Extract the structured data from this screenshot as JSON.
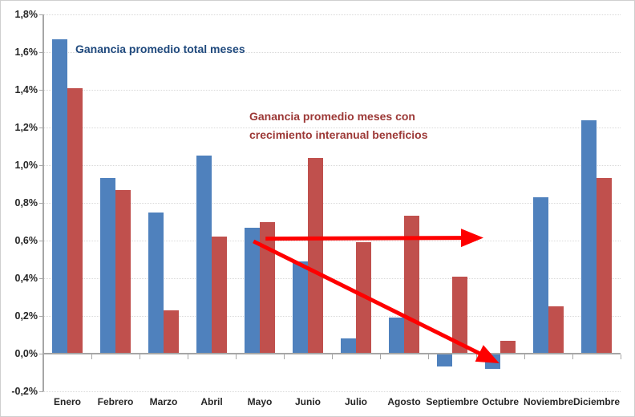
{
  "page": {
    "background": "#FFFFFF",
    "border_color": "#CFCFCF"
  },
  "chart_data": {
    "type": "bar",
    "title": "",
    "xlabel": "",
    "ylabel": "",
    "categories": [
      "Enero",
      "Febrero",
      "Marzo",
      "Abril",
      "Mayo",
      "Junio",
      "Julio",
      "Agosto",
      "Septiembre",
      "Octubre",
      "Noviembre",
      "Diciembre"
    ],
    "series": [
      {
        "name": "Ganancia promedio total meses",
        "color": "#4F81BD",
        "values": [
          1.67,
          0.93,
          0.75,
          1.05,
          0.67,
          0.49,
          0.08,
          0.19,
          -0.07,
          -0.08,
          0.83,
          1.24
        ]
      },
      {
        "name": "Ganancia promedio meses con crecimiento interanual beneficios",
        "color": "#C0504D",
        "values": [
          1.41,
          0.87,
          0.23,
          0.62,
          0.7,
          1.04,
          0.59,
          0.73,
          0.41,
          0.07,
          0.25,
          0.93
        ]
      }
    ],
    "ylim": [
      -0.2,
      1.8
    ],
    "ytick_values": [
      1.8,
      1.6,
      1.4,
      1.2,
      1.0,
      0.8,
      0.6,
      0.4,
      0.2,
      0.0,
      -0.2
    ],
    "ytick_labels": [
      "1,8%",
      "1,6%",
      "1,4%",
      "1,2%",
      "1,0%",
      "0,8%",
      "0,6%",
      "0,4%",
      "0,2%",
      "0,0%",
      "-0,2%"
    ],
    "grid": {
      "horizontal": true,
      "style": "dotted",
      "color": "#D9D9D9"
    },
    "axis_color": "#A6A6A6",
    "tick_label_color": "#262626",
    "legend_position": "none"
  },
  "annotations": {
    "blue_label": {
      "text": "Ganancia promedio total meses",
      "color": "#1F497D"
    },
    "red_label": {
      "text": "Ganancia promedio meses con\ncrecimiento interanual beneficios",
      "color": "#9C3836"
    },
    "arrows": [
      {
        "name": "horizontal-trend-arrow",
        "color": "#FE0000",
        "from": {
          "category_x": 4.62,
          "value": 0.61
        },
        "to": {
          "category_x": 9.15,
          "value": 0.615
        }
      },
      {
        "name": "downward-trend-arrow",
        "color": "#FE0000",
        "from": {
          "category_x": 4.37,
          "value": 0.596
        },
        "to": {
          "category_x": 9.48,
          "value": -0.051
        }
      }
    ]
  }
}
